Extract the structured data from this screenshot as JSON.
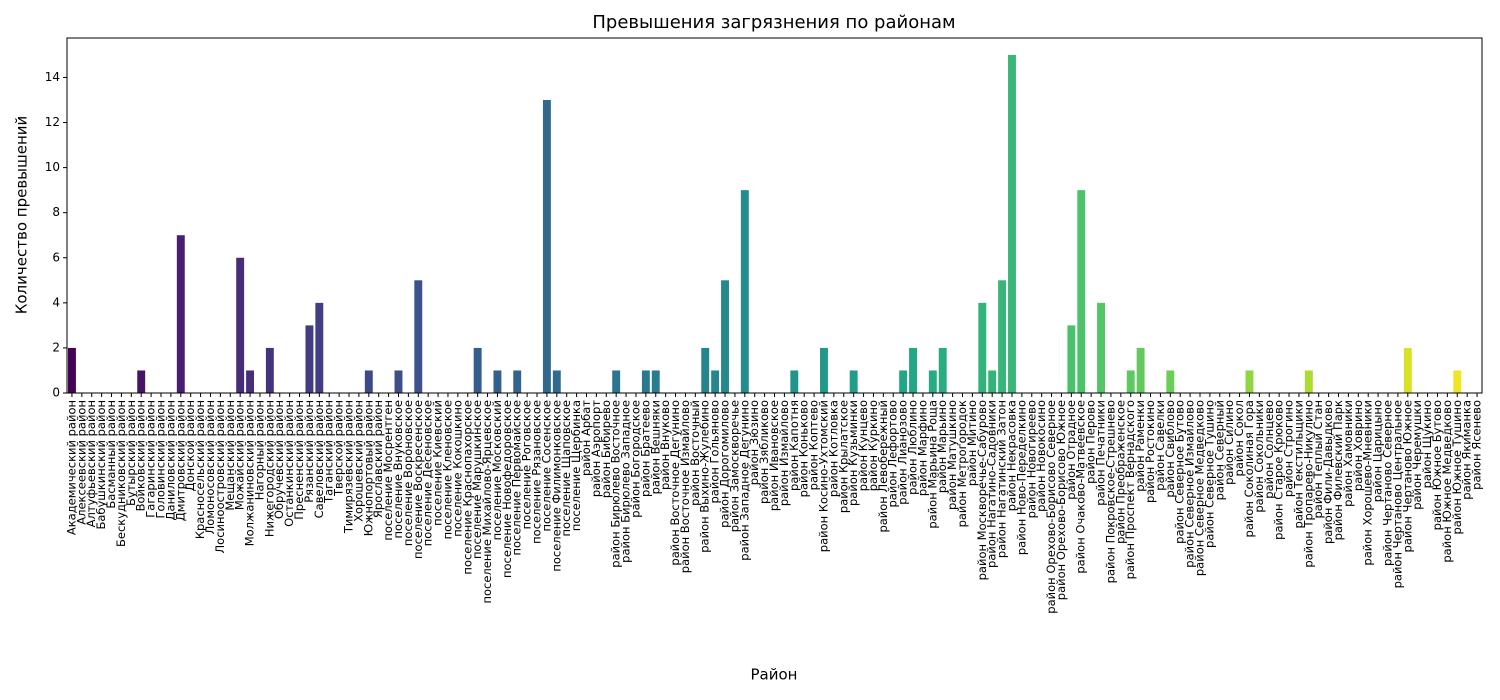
{
  "chart_data": {
    "type": "bar",
    "title": "Превышения загрязнения по районам",
    "x_label": "Район",
    "y_label": "Количество превышений",
    "palette": "viridis",
    "categories": [
      "Академический район",
      "Алексеевский район",
      "Алтуфьевский район",
      "Бабушкинский район",
      "Басманный район",
      "Бескудниковский район",
      "Бутырский район",
      "Войковский район",
      "Гагаринский район",
      "Головинский район",
      "Даниловский район",
      "Дмитровский район",
      "Донской район",
      "Красносельский район",
      "Ломоносовский район",
      "Лосиноостровский район",
      "Мещанский район",
      "Можайский район",
      "Молжаниновский район",
      "Нагорный район",
      "Нижегородский район",
      "Обручевский район",
      "Останкинский район",
      "Пресненский район",
      "Рязанский район",
      "Савеловский район",
      "Таганский район",
      "Тверской район",
      "Тимирязевский район",
      "Хорошевский район",
      "Южнопортовый район",
      "Ярославский район",
      "поселение Мосрентген",
      "поселение Внуковское",
      "поселение Вороновское",
      "поселение Воскресенское",
      "поселение Десеновское",
      "поселение Киевский",
      "поселение Кленовское",
      "поселение Кокошкино",
      "поселение Краснопахорское",
      "поселение Марушкинское",
      "поселение Михайлово-Ярцевское",
      "поселение Московский",
      "поселение Новофедоровское",
      "поселение Первомайское",
      "поселение Роговское",
      "поселение Рязановское",
      "поселение Сосенское",
      "поселение Филимонковское",
      "поселение Щаповское",
      "поселение Щербинка",
      "район Арбат",
      "район Аэропорт",
      "район Бибирево",
      "район Бирюлево Восточное",
      "район Бирюлево Западное",
      "район Богородское",
      "район Братеево",
      "район Вешняки",
      "район Внуково",
      "район Восточное Дегунино",
      "район Восточное Измайлово",
      "район Восточный",
      "район Выхино-Жулебино",
      "район Гольяново",
      "район Дорогомилово",
      "район Замоскворечье",
      "район Западное Дегунино",
      "район Зюзино",
      "район Зябликово",
      "район Ивановское",
      "район Измайлово",
      "район Капотня",
      "район Коньково",
      "район Коптево",
      "район Косино-Ухтомский",
      "район Котловка",
      "район Крылатское",
      "район Кузьминки",
      "район Кунцево",
      "район Куркино",
      "район Левобережный",
      "район Лефортово",
      "район Лианозово",
      "район Люблино",
      "район Марфино",
      "район Марьина Роща",
      "район Марьино",
      "район Матушкино",
      "район Метрогородок",
      "район Митино",
      "район Москворечье-Сабурово",
      "район Нагатино-Садовники",
      "район Нагатинский Затон",
      "район Некрасовка",
      "район Ново-Переделкино",
      "район Новогиреево",
      "район Новокосино",
      "район Орехово-Борисово Северное",
      "район Орехово-Борисово Южное",
      "район Отрадное",
      "район Очаково-Матвеевское",
      "район Перово",
      "район Печатники",
      "район Покровское-Стрешнево",
      "район Преображенское",
      "район Проспект Вернадского",
      "район Раменки",
      "район Ростокино",
      "район Савелки",
      "район Свиблово",
      "район Северное Бутово",
      "район Северное Измайлово",
      "район Северное Медведково",
      "район Северное Тушино",
      "район Северный",
      "район Силино",
      "район Сокол",
      "район Соколиная Гора",
      "район Сокольники",
      "район Солнцево",
      "район Старое Крюково",
      "район Строгино",
      "район Текстильщики",
      "район Тропарево-Никулино",
      "район Теплый Стан",
      "район Фили-Давыдково",
      "район Филевский Парк",
      "район Хамовники",
      "район Ховрино",
      "район Хорошево-Мневники",
      "район Царицыно",
      "район Чертаново Северное",
      "район Чертаново Центральное",
      "район Чертаново Южное",
      "район Черемушки",
      "район Щукино",
      "район Южное Бутово",
      "район Южное Медведково",
      "район Южное Тушино",
      "район Якиманка",
      "район Ясенево"
    ],
    "values": [
      2,
      0,
      0,
      0,
      0,
      0,
      0,
      1,
      0,
      0,
      0,
      7,
      0,
      0,
      0,
      0,
      0,
      6,
      1,
      0,
      2,
      0,
      0,
      0,
      3,
      4,
      0,
      0,
      0,
      0,
      1,
      0,
      0,
      1,
      0,
      5,
      0,
      0,
      0,
      0,
      0,
      2,
      0,
      1,
      0,
      1,
      0,
      0,
      13,
      1,
      0,
      0,
      0,
      0,
      0,
      1,
      0,
      0,
      1,
      1,
      0,
      0,
      0,
      0,
      2,
      1,
      5,
      0,
      9,
      0,
      0,
      0,
      0,
      1,
      0,
      0,
      2,
      0,
      0,
      1,
      0,
      0,
      0,
      0,
      1,
      2,
      0,
      1,
      2,
      0,
      0,
      0,
      4,
      1,
      5,
      15,
      0,
      0,
      0,
      0,
      0,
      3,
      9,
      0,
      4,
      0,
      0,
      1,
      2,
      0,
      0,
      1,
      0,
      0,
      0,
      0,
      0,
      0,
      0,
      1,
      0,
      0,
      0,
      0,
      0,
      1,
      0,
      0,
      0,
      0,
      0,
      0,
      0,
      0,
      0,
      2,
      0,
      0,
      0,
      0,
      1,
      0,
      0
    ],
    "ylim": [
      0,
      15.75
    ],
    "yticks": [
      0,
      2,
      4,
      6,
      8,
      10,
      12,
      14
    ],
    "grid": false
  }
}
